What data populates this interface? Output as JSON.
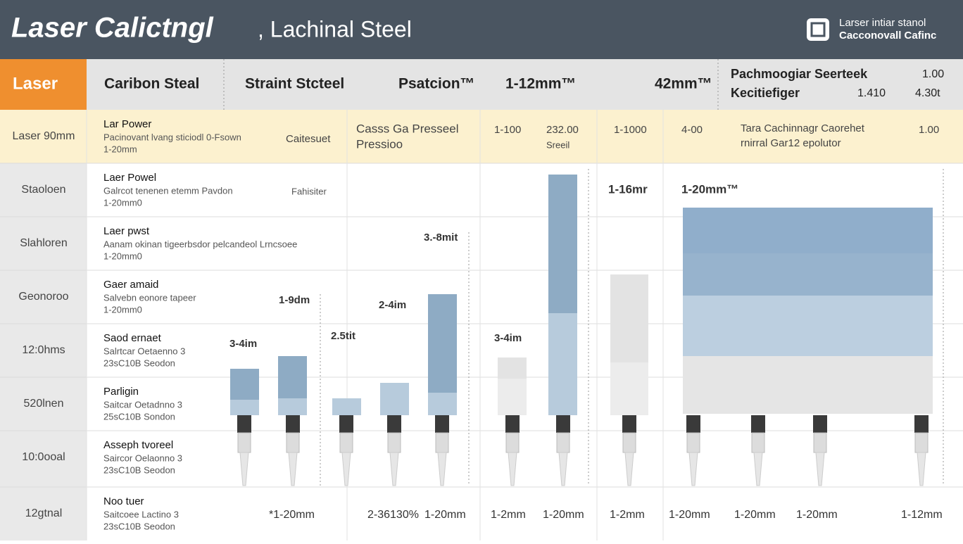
{
  "header": {
    "title": "Laser Calictngl",
    "subtitle": ", Lachinal Steel",
    "brand": [
      "Larser intiar stanol",
      "Cacconovall Cafinc"
    ]
  },
  "top_row": [
    "Laser",
    "Caribon Steal",
    "Straint Stcteel",
    "Psatcion™",
    "1-12mm™",
    "42mm™",
    "Pachmoogiar Seerteek",
    "Kecitiefiger",
    "1.410",
    "1.00",
    "4.30t"
  ],
  "rows": [
    {
      "label": "Laser 90mm",
      "lines": [
        "Lar Power",
        "Pacinovant lvang sticiodl 0-Fsown",
        "1-20mm"
      ],
      "extra": [
        "Caitesuet",
        "Casss Ga Presseel",
        "Pressioo",
        "1-100",
        "232.00",
        "Sreeil",
        "1-1000",
        "4-00",
        "Tara Cachinnagr Caorehet",
        "rnirral Gar12 epolutor",
        "1.00"
      ]
    },
    {
      "label": "Staoloen",
      "lines": [
        "Laer Powel",
        "Galrcot tenenen etemm Pavdon",
        "1-20mm0"
      ],
      "extra": [
        "Fahisiter"
      ]
    },
    {
      "label": "Slahloren",
      "lines": [
        "Laer pwst",
        "Aanam okinan tigeerbsdor pelcandeol Lrncsoee",
        "1-20mm0"
      ],
      "extra": []
    },
    {
      "label": "Geonoroo",
      "lines": [
        "Gaer amaid",
        "Salvebn eonore tapeer",
        "1-20mm0"
      ],
      "extra": []
    },
    {
      "label": "12:0hms",
      "lines": [
        "Saod ernaet",
        "Salrtcar Oetaenno 3",
        "23sC10B Seodon"
      ],
      "extra": []
    },
    {
      "label": "520lnen",
      "lines": [
        "Parligin",
        "Saitcar Oetadnno 3",
        "25sC10B Sondon"
      ],
      "extra": []
    },
    {
      "label": "10:0ooal",
      "lines": [
        "Asseph tvoreel",
        "Saircor Oelaonno 3",
        "23sC10B Seodon"
      ],
      "extra": []
    },
    {
      "label": "12gtnal",
      "lines": [
        "Noo tuer",
        "Saitcoee Lactino 3",
        "23sC10B Seodon"
      ],
      "extra": []
    }
  ],
  "annotations": [
    "1-16mr",
    "1-20mm™",
    "3.-8mit",
    "1-9dm",
    "2-4im",
    "2.5tit",
    "3-4im",
    "3-4im"
  ],
  "bottom_labels": [
    "*1-20mm",
    "2-36130%",
    "1-20mm",
    "1-2mm",
    "1-20mm",
    "1-2mm",
    "1-20mm",
    "1-20mm",
    "1-20mm",
    "1-12mm"
  ]
}
